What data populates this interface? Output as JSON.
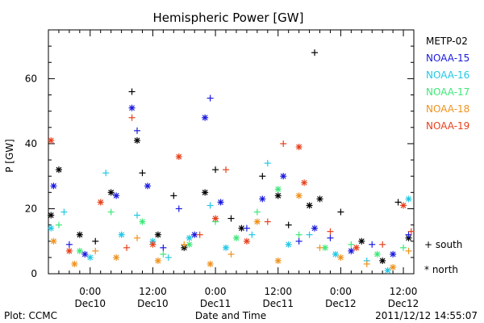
{
  "chart_data": {
    "type": "scatter",
    "title": "Hemispheric Power [GW]",
    "ylabel": "P [GW]",
    "xlabel": "Date and Time",
    "ylim": [
      0,
      75
    ],
    "yticks": [
      0,
      20,
      40,
      60
    ],
    "xlim": [
      "2011-12-09T16:00",
      "2011-12-12T14:00"
    ],
    "xticks": [
      {
        "line1": "0:00",
        "line2": "Dec10",
        "t": "2011-12-10T00:00"
      },
      {
        "line1": "12:00",
        "line2": "Dec10",
        "t": "2011-12-10T12:00"
      },
      {
        "line1": "0:00",
        "line2": "Dec11",
        "t": "2011-12-11T00:00"
      },
      {
        "line1": "12:00",
        "line2": "Dec11",
        "t": "2011-12-11T12:00"
      },
      {
        "line1": "0:00",
        "line2": "Dec12",
        "t": "2011-12-12T00:00"
      },
      {
        "line1": "12:00",
        "line2": "Dec12",
        "t": "2011-12-12T12:00"
      }
    ],
    "legend": {
      "placement": "right"
    },
    "symbol_key": [
      {
        "symbol": "+",
        "label": "south"
      },
      {
        "symbol": "*",
        "label": "north"
      }
    ],
    "series": [
      {
        "name": "METP-02",
        "color": "#000000",
        "points": [
          [
            "2011-12-09T16:30",
            18,
            "*"
          ],
          [
            "2011-12-09T18:00",
            32,
            "*"
          ],
          [
            "2011-12-09T22:00",
            12,
            "*"
          ],
          [
            "2011-12-10T01:00",
            10,
            "+"
          ],
          [
            "2011-12-10T04:00",
            25,
            "*"
          ],
          [
            "2011-12-10T08:00",
            56,
            "+"
          ],
          [
            "2011-12-10T09:00",
            41,
            "*"
          ],
          [
            "2011-12-10T10:00",
            31,
            "+"
          ],
          [
            "2011-12-10T13:00",
            12,
            "*"
          ],
          [
            "2011-12-10T16:00",
            24,
            "+"
          ],
          [
            "2011-12-10T18:00",
            8,
            "*"
          ],
          [
            "2011-12-10T22:00",
            25,
            "*"
          ],
          [
            "2011-12-11T00:00",
            32,
            "+"
          ],
          [
            "2011-12-11T03:00",
            17,
            "+"
          ],
          [
            "2011-12-11T05:00",
            14,
            "*"
          ],
          [
            "2011-12-11T09:00",
            30,
            "+"
          ],
          [
            "2011-12-11T12:00",
            24,
            "*"
          ],
          [
            "2011-12-11T14:00",
            15,
            "+"
          ],
          [
            "2011-12-11T18:00",
            21,
            "*"
          ],
          [
            "2011-12-11T19:00",
            68,
            "+"
          ],
          [
            "2011-12-11T20:00",
            23,
            "*"
          ],
          [
            "2011-12-12T00:00",
            19,
            "+"
          ],
          [
            "2011-12-12T04:00",
            10,
            "*"
          ],
          [
            "2011-12-12T08:00",
            4,
            "*"
          ],
          [
            "2011-12-12T11:00",
            22,
            "+"
          ],
          [
            "2011-12-12T13:00",
            11,
            "*"
          ]
        ]
      },
      {
        "name": "NOAA-15",
        "color": "#1a1adf",
        "points": [
          [
            "2011-12-09T17:00",
            27,
            "*"
          ],
          [
            "2011-12-09T20:00",
            9,
            "+"
          ],
          [
            "2011-12-09T23:00",
            6,
            "*"
          ],
          [
            "2011-12-10T05:00",
            24,
            "*"
          ],
          [
            "2011-12-10T08:00",
            51,
            "*"
          ],
          [
            "2011-12-10T09:00",
            44,
            "+"
          ],
          [
            "2011-12-10T11:00",
            27,
            "*"
          ],
          [
            "2011-12-10T14:00",
            8,
            "+"
          ],
          [
            "2011-12-10T17:00",
            20,
            "+"
          ],
          [
            "2011-12-10T20:00",
            12,
            "*"
          ],
          [
            "2011-12-10T22:00",
            48,
            "*"
          ],
          [
            "2011-12-10T23:00",
            54,
            "+"
          ],
          [
            "2011-12-11T01:00",
            22,
            "*"
          ],
          [
            "2011-12-11T06:00",
            14,
            "+"
          ],
          [
            "2011-12-11T09:00",
            23,
            "*"
          ],
          [
            "2011-12-11T13:00",
            30,
            "*"
          ],
          [
            "2011-12-11T16:00",
            10,
            "+"
          ],
          [
            "2011-12-11T19:00",
            14,
            "*"
          ],
          [
            "2011-12-11T22:00",
            11,
            "+"
          ],
          [
            "2011-12-12T02:00",
            7,
            "*"
          ],
          [
            "2011-12-12T06:00",
            9,
            "+"
          ],
          [
            "2011-12-12T10:00",
            6,
            "*"
          ],
          [
            "2011-12-12T13:00",
            12,
            "+"
          ]
        ]
      },
      {
        "name": "NOAA-16",
        "color": "#22c8e6",
        "points": [
          [
            "2011-12-09T16:30",
            14,
            "*"
          ],
          [
            "2011-12-09T19:00",
            19,
            "+"
          ],
          [
            "2011-12-10T00:00",
            5,
            "*"
          ],
          [
            "2011-12-10T03:00",
            31,
            "+"
          ],
          [
            "2011-12-10T06:00",
            12,
            "*"
          ],
          [
            "2011-12-10T09:00",
            18,
            "+"
          ],
          [
            "2011-12-10T12:00",
            10,
            "*"
          ],
          [
            "2011-12-10T15:00",
            5,
            "+"
          ],
          [
            "2011-12-10T19:00",
            11,
            "*"
          ],
          [
            "2011-12-10T23:00",
            21,
            "+"
          ],
          [
            "2011-12-11T02:00",
            8,
            "*"
          ],
          [
            "2011-12-11T07:00",
            12,
            "+"
          ],
          [
            "2011-12-11T10:00",
            34,
            "+"
          ],
          [
            "2011-12-11T14:00",
            9,
            "*"
          ],
          [
            "2011-12-11T18:00",
            12,
            "+"
          ],
          [
            "2011-12-11T23:00",
            6,
            "*"
          ],
          [
            "2011-12-12T05:00",
            4,
            "+"
          ],
          [
            "2011-12-12T09:00",
            1,
            "*"
          ],
          [
            "2011-12-12T13:00",
            23,
            "*"
          ]
        ]
      },
      {
        "name": "NOAA-17",
        "color": "#3ee878",
        "points": [
          [
            "2011-12-09T18:00",
            15,
            "+"
          ],
          [
            "2011-12-09T22:00",
            7,
            "*"
          ],
          [
            "2011-12-10T04:00",
            19,
            "+"
          ],
          [
            "2011-12-10T10:00",
            16,
            "*"
          ],
          [
            "2011-12-10T14:00",
            6,
            "+"
          ],
          [
            "2011-12-10T19:00",
            9,
            "*"
          ],
          [
            "2011-12-11T00:00",
            16,
            "+"
          ],
          [
            "2011-12-11T04:00",
            11,
            "*"
          ],
          [
            "2011-12-11T08:00",
            19,
            "+"
          ],
          [
            "2011-12-11T12:00",
            26,
            "*"
          ],
          [
            "2011-12-11T16:00",
            12,
            "+"
          ],
          [
            "2011-12-11T21:00",
            8,
            "*"
          ],
          [
            "2011-12-12T02:00",
            9,
            "+"
          ],
          [
            "2011-12-12T07:00",
            6,
            "*"
          ],
          [
            "2011-12-12T12:00",
            8,
            "+"
          ]
        ]
      },
      {
        "name": "NOAA-18",
        "color": "#f0921c",
        "points": [
          [
            "2011-12-09T17:00",
            10,
            "*"
          ],
          [
            "2011-12-09T21:00",
            3,
            "*"
          ],
          [
            "2011-12-10T01:00",
            7,
            "+"
          ],
          [
            "2011-12-10T05:00",
            5,
            "*"
          ],
          [
            "2011-12-10T09:00",
            11,
            "+"
          ],
          [
            "2011-12-10T13:00",
            4,
            "*"
          ],
          [
            "2011-12-10T18:00",
            9,
            "+"
          ],
          [
            "2011-12-10T23:00",
            3,
            "*"
          ],
          [
            "2011-12-11T03:00",
            6,
            "+"
          ],
          [
            "2011-12-11T08:00",
            16,
            "*"
          ],
          [
            "2011-12-11T12:00",
            4,
            "*"
          ],
          [
            "2011-12-11T16:00",
            24,
            "*"
          ],
          [
            "2011-12-11T20:00",
            8,
            "+"
          ],
          [
            "2011-12-12T00:00",
            5,
            "*"
          ],
          [
            "2011-12-12T05:00",
            3,
            "+"
          ],
          [
            "2011-12-12T10:00",
            2,
            "*"
          ],
          [
            "2011-12-12T13:00",
            7,
            "+"
          ]
        ]
      },
      {
        "name": "NOAA-19",
        "color": "#e8401c",
        "points": [
          [
            "2011-12-09T16:30",
            41,
            "*"
          ],
          [
            "2011-12-09T20:00",
            7,
            "*"
          ],
          [
            "2011-12-10T02:00",
            22,
            "*"
          ],
          [
            "2011-12-10T07:00",
            8,
            "+"
          ],
          [
            "2011-12-10T08:00",
            48,
            "+"
          ],
          [
            "2011-12-10T12:00",
            9,
            "*"
          ],
          [
            "2011-12-10T17:00",
            36,
            "*"
          ],
          [
            "2011-12-10T21:00",
            12,
            "+"
          ],
          [
            "2011-12-11T00:00",
            17,
            "*"
          ],
          [
            "2011-12-11T02:00",
            32,
            "+"
          ],
          [
            "2011-12-11T06:00",
            10,
            "*"
          ],
          [
            "2011-12-11T10:00",
            16,
            "+"
          ],
          [
            "2011-12-11T13:00",
            40,
            "+"
          ],
          [
            "2011-12-11T16:00",
            39,
            "*"
          ],
          [
            "2011-12-11T17:00",
            28,
            "*"
          ],
          [
            "2011-12-11T22:00",
            13,
            "+"
          ],
          [
            "2011-12-12T03:00",
            8,
            "*"
          ],
          [
            "2011-12-12T08:00",
            9,
            "+"
          ],
          [
            "2011-12-12T12:00",
            21,
            "*"
          ],
          [
            "2011-12-12T13:30",
            13,
            "+"
          ]
        ]
      }
    ]
  },
  "footer": {
    "left": "Plot: CCMC",
    "right": "2011/12/12 14:55:07"
  }
}
